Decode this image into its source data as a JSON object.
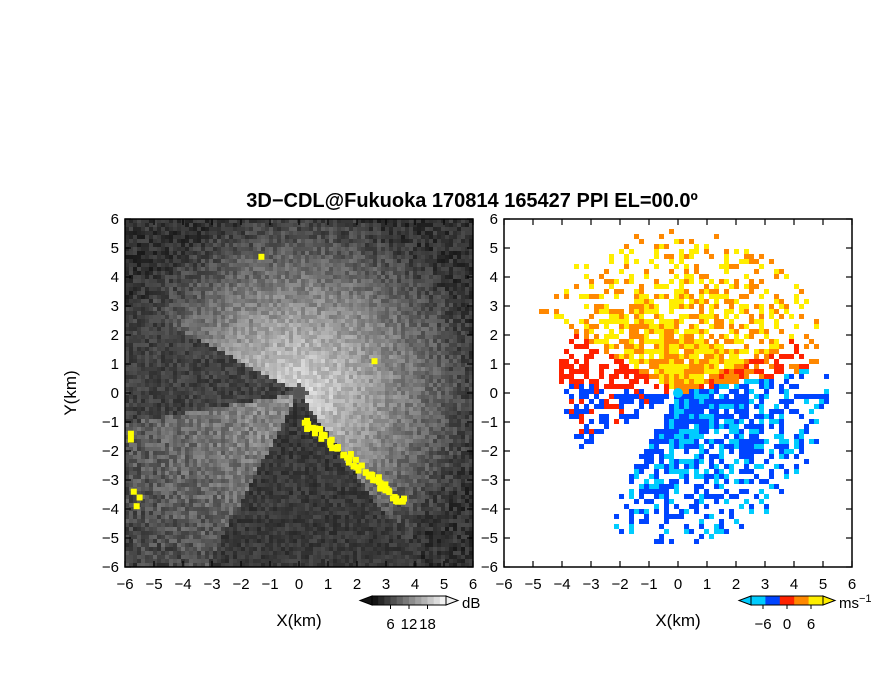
{
  "chart_data": {
    "title": "3D−CDL@Fukuoka 170814 165427 PPI EL=00.0º",
    "panels": [
      {
        "type": "heatmap",
        "variable": "signal-to-noise ratio",
        "xlabel": "X(km)",
        "ylabel": "Y(km)",
        "xlim": [
          -6,
          6
        ],
        "ylim": [
          -6,
          6
        ],
        "xticks": [
          "−6",
          "−5",
          "−4",
          "−3",
          "−2",
          "−1",
          "0",
          "1",
          "2",
          "3",
          "4",
          "5",
          "6"
        ],
        "yticks": [
          "−6",
          "−5",
          "−4",
          "−3",
          "−2",
          "−1",
          "0",
          "1",
          "2",
          "3",
          "4",
          "5",
          "6"
        ],
        "colormap": "gray",
        "highlight_color": "#ffff00",
        "colorbar": {
          "unit": "dB",
          "ticks": [
            "6",
            "12",
            "18"
          ],
          "range": [
            0,
            24
          ]
        }
      },
      {
        "type": "heatmap",
        "variable": "radial velocity",
        "xlabel": "X(km)",
        "xlim": [
          -6,
          6
        ],
        "ylim": [
          -6,
          6
        ],
        "xticks": [
          "−6",
          "−5",
          "−4",
          "−3",
          "−2",
          "−1",
          "0",
          "1",
          "2",
          "3",
          "4",
          "5",
          "6"
        ],
        "yticks": [
          "−6",
          "−5",
          "−4",
          "−3",
          "−2",
          "−1",
          "0",
          "1",
          "2",
          "3",
          "4",
          "5",
          "6"
        ],
        "colormap": [
          "#00ccff",
          "#0044ff",
          "#ff2200",
          "#ff8800",
          "#ffee00"
        ],
        "colorbar": {
          "unit": "ms",
          "unit_sup": "−1",
          "ticks": [
            "−6",
            "0",
            "6"
          ],
          "range": [
            -9,
            9
          ]
        }
      }
    ]
  }
}
